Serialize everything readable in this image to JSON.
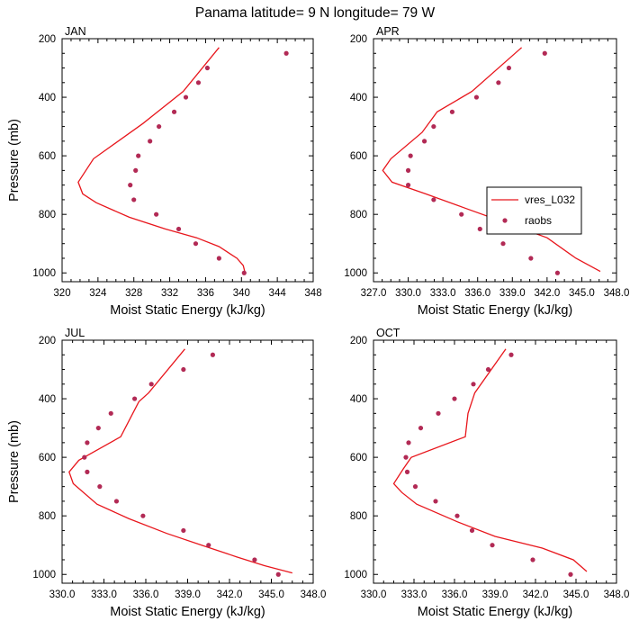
{
  "title": "Panama  latitude= 9 N longitude= 79 W",
  "legend": {
    "line_label": "vres_L032",
    "dot_label": "raobs"
  },
  "colors": {
    "line": "#e8161c",
    "dots": "#b22a55"
  },
  "chart_data": [
    {
      "type": "line",
      "title": "JAN",
      "xlabel": "Moist Static Energy (kJ/kg)",
      "ylabel": "Pressure (mb)",
      "xlim": [
        320,
        348
      ],
      "ylim": [
        1030,
        200
      ],
      "xticks": [
        320,
        324,
        328,
        332,
        336,
        340,
        344,
        348
      ],
      "xtick_labels": [
        "320",
        "324",
        "328",
        "332",
        "336",
        "340",
        "344",
        "348"
      ],
      "yticks": [
        200,
        400,
        600,
        800,
        1000
      ],
      "ytick_labels": [
        "200",
        "400",
        "600",
        "800",
        "1000"
      ],
      "series": [
        {
          "name": "vres_L032",
          "kind": "line",
          "x": [
            337.5,
            333.5,
            329,
            323.5,
            321.8,
            322.3,
            323.8,
            327.5,
            331.5,
            335,
            337.5,
            339.5,
            340.2,
            340.4
          ],
          "y": [
            230,
            380,
            490,
            610,
            690,
            730,
            760,
            810,
            850,
            880,
            910,
            950,
            975,
            1000
          ]
        },
        {
          "name": "raobs",
          "kind": "scatter",
          "x": [
            345,
            336.2,
            335.2,
            333.8,
            332.5,
            330.8,
            329.8,
            328.5,
            328.2,
            327.6,
            328,
            330.5,
            333,
            334.9,
            337.5,
            340.3
          ],
          "y": [
            250,
            300,
            350,
            400,
            450,
            500,
            550,
            600,
            650,
            700,
            750,
            800,
            850,
            900,
            950,
            1000
          ]
        }
      ]
    },
    {
      "type": "line",
      "title": "APR",
      "xlabel": "Moist Static Energy (kJ/kg)",
      "ylabel": "Pressure (mb)",
      "xlim": [
        327,
        348
      ],
      "ylim": [
        1030,
        200
      ],
      "xticks": [
        327,
        330,
        333,
        336,
        339,
        342,
        345,
        348
      ],
      "xtick_labels": [
        "327.0",
        "330.0",
        "333.0",
        "336.0",
        "339.0",
        "342.0",
        "345.0",
        "348.0"
      ],
      "yticks": [
        200,
        400,
        600,
        800,
        1000
      ],
      "ytick_labels": [
        "200",
        "400",
        "600",
        "800",
        "1000"
      ],
      "series": [
        {
          "name": "vres_L032",
          "kind": "line",
          "x": [
            339.8,
            335.5,
            332.5,
            331.2,
            328.5,
            327.8,
            328.6,
            331.5,
            335,
            338.5,
            342,
            344.5,
            346.6
          ],
          "y": [
            230,
            380,
            450,
            520,
            610,
            650,
            690,
            730,
            780,
            830,
            880,
            950,
            995
          ]
        },
        {
          "name": "raobs",
          "kind": "scatter",
          "x": [
            341.8,
            338.7,
            337.8,
            335.9,
            333.8,
            332.2,
            331.4,
            330.2,
            330,
            330,
            332.2,
            334.6,
            336.2,
            338.2,
            340.6,
            342.9
          ],
          "y": [
            250,
            300,
            350,
            400,
            450,
            500,
            550,
            600,
            650,
            700,
            750,
            800,
            850,
            900,
            950,
            1000
          ]
        }
      ]
    },
    {
      "type": "line",
      "title": "JUL",
      "xlabel": "Moist Static Energy (kJ/kg)",
      "ylabel": "Pressure (mb)",
      "xlim": [
        330,
        348
      ],
      "ylim": [
        1030,
        200
      ],
      "xticks": [
        330,
        333,
        336,
        339,
        342,
        345,
        348
      ],
      "xtick_labels": [
        "330.0",
        "333.0",
        "336.0",
        "339.0",
        "342.0",
        "345.0",
        "348.0"
      ],
      "yticks": [
        200,
        400,
        600,
        800,
        1000
      ],
      "ytick_labels": [
        "200",
        "400",
        "600",
        "800",
        "1000"
      ],
      "series": [
        {
          "name": "vres_L032",
          "kind": "line",
          "x": [
            338.8,
            336.2,
            335.5,
            334.2,
            331.2,
            330.5,
            330.8,
            332.5,
            334.8,
            337.5,
            340,
            342.5,
            344.5,
            346.5
          ],
          "y": [
            230,
            380,
            410,
            530,
            610,
            650,
            690,
            760,
            810,
            860,
            900,
            940,
            970,
            995
          ]
        },
        {
          "name": "raobs",
          "kind": "scatter",
          "x": [
            340.8,
            338.7,
            336.4,
            335.2,
            333.5,
            332.6,
            331.8,
            331.6,
            331.8,
            332.7,
            333.9,
            335.8,
            338.7,
            340.5,
            343.8,
            345.5
          ],
          "y": [
            250,
            300,
            350,
            400,
            450,
            500,
            550,
            600,
            650,
            700,
            750,
            800,
            850,
            900,
            950,
            1000
          ]
        }
      ]
    },
    {
      "type": "line",
      "title": "OCT",
      "xlabel": "Moist Static Energy (kJ/kg)",
      "ylabel": "Pressure (mb)",
      "xlim": [
        330,
        348
      ],
      "ylim": [
        1030,
        200
      ],
      "xticks": [
        330,
        333,
        336,
        339,
        342,
        345,
        348
      ],
      "xtick_labels": [
        "330.0",
        "333.0",
        "336.0",
        "339.0",
        "342.0",
        "345.0",
        "348.0"
      ],
      "yticks": [
        200,
        400,
        600,
        800,
        1000
      ],
      "ytick_labels": [
        "200",
        "400",
        "600",
        "800",
        "1000"
      ],
      "series": [
        {
          "name": "vres_L032",
          "kind": "line",
          "x": [
            339.8,
            337.5,
            337,
            336.8,
            332.8,
            332.2,
            331.5,
            332.1,
            333.2,
            336.2,
            339,
            342.5,
            344.8,
            345.8
          ],
          "y": [
            230,
            380,
            450,
            530,
            600,
            640,
            690,
            720,
            760,
            820,
            870,
            910,
            950,
            990
          ]
        },
        {
          "name": "raobs",
          "kind": "scatter",
          "x": [
            340.2,
            338.5,
            337.4,
            336,
            334.8,
            333.5,
            332.6,
            332.4,
            332.5,
            333.1,
            334.6,
            336.2,
            337.3,
            338.8,
            341.8,
            344.6
          ],
          "y": [
            250,
            300,
            350,
            400,
            450,
            500,
            550,
            600,
            650,
            700,
            750,
            800,
            850,
            900,
            950,
            1000
          ]
        }
      ]
    }
  ]
}
